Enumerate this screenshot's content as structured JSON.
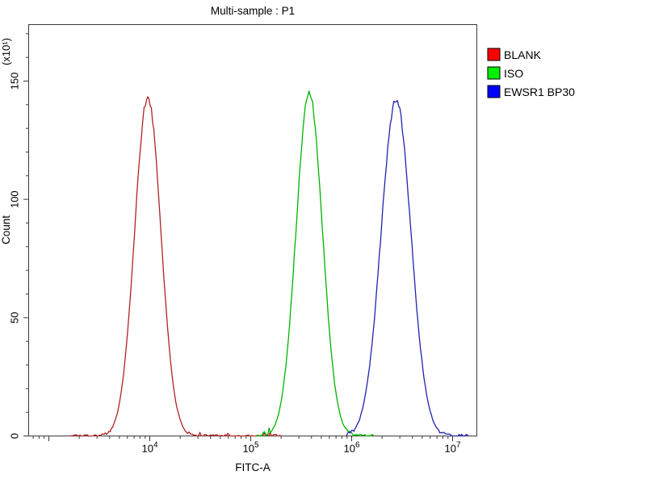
{
  "title": "Multi-sample : P1",
  "axes": {
    "x": {
      "label": "FITC-A",
      "scale": "log10",
      "tick_exponents": [
        4,
        5,
        6,
        7
      ],
      "range_log10": [
        2.8,
        7.24
      ]
    },
    "y": {
      "label": "Count",
      "multiplier_label": "(x10¹)",
      "ticks": [
        0,
        50,
        100,
        150
      ],
      "minor_step": 10,
      "max": 174
    }
  },
  "legend": {
    "items": [
      {
        "label": "BLANK",
        "swatch_color": "#ff0000"
      },
      {
        "label": "ISO",
        "swatch_color": "#00ee00"
      },
      {
        "label": "EWSR1 BP30",
        "swatch_color": "#0000ff"
      }
    ]
  },
  "colors": {
    "axis": "#3a3a3a",
    "background": "#ffffff"
  },
  "chart_data": {
    "type": "line",
    "subtype": "flow-cytometry-histogram-overlay",
    "title": "Multi-sample : P1",
    "xlabel": "FITC-A",
    "ylabel": "Count",
    "y_units_multiplier_label": "(x10¹)",
    "x_scale": "log10",
    "xlim_log10": [
      2.8,
      7.24
    ],
    "x_tick_values": [
      10000,
      100000,
      1000000,
      10000000
    ],
    "ylim": [
      0,
      174
    ],
    "y_ticks": [
      0,
      50,
      100,
      150
    ],
    "legend_position": "right-outside",
    "grid": false,
    "series": [
      {
        "name": "BLANK",
        "color": "#b22222",
        "peak_x": 9500,
        "peak_log10": 3.98,
        "peak_count": 143,
        "sigma_log10": 0.13,
        "plot_range_log10": [
          3.2,
          5.3
        ]
      },
      {
        "name": "ISO",
        "color": "#00b400",
        "peak_x": 380000,
        "peak_log10": 5.58,
        "peak_count": 145,
        "sigma_log10": 0.13,
        "plot_range_log10": [
          5.05,
          6.22
        ]
      },
      {
        "name": "EWSR1 BP30",
        "color": "#2222b2",
        "peak_x": 2750000,
        "peak_log10": 6.44,
        "peak_count": 142,
        "sigma_log10": 0.148,
        "plot_range_log10": [
          5.95,
          7.15
        ]
      }
    ]
  }
}
